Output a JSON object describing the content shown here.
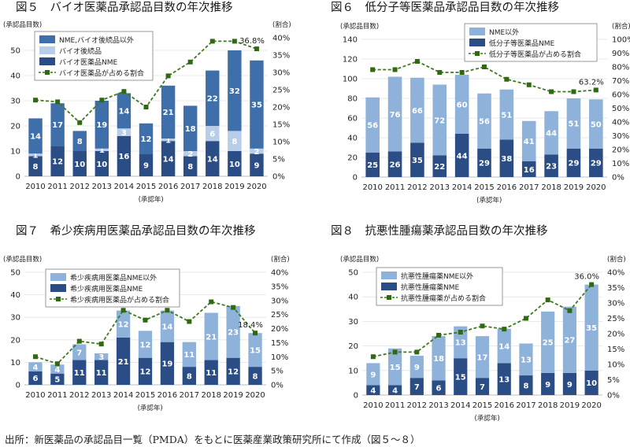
{
  "colors": {
    "light_bar": "#8fb2da",
    "dark_bar": "#2b4d86",
    "mid_bar": "#b7cde8",
    "bio_bar": "#3f6faa",
    "line": "#3f7a1f",
    "marker": "#2f6a12",
    "grid": "#e3e3e3",
    "axis": "#bdbdbd",
    "legend_border": "#7f7f7f"
  },
  "caption": "出所：新医薬品の承認品目一覧（PMDA）をもとに医薬産業政策研究所にて作成（図５～８）",
  "chart_data": [
    {
      "id": "fig5",
      "type": "bar",
      "title": "図５　バイオ医薬品承認品目数の年次推移",
      "ylabel": "(承認品目数)",
      "y2label": "(割合)",
      "xlabel": "(承認年)",
      "categories": [
        "2010",
        "2011",
        "2012",
        "2013",
        "2014",
        "2015",
        "2016",
        "2017",
        "2018",
        "2019",
        "2020"
      ],
      "ylim": [
        0,
        55
      ],
      "yticks": [
        0,
        10,
        20,
        30,
        40,
        50
      ],
      "y2lim": [
        0,
        40
      ],
      "y2ticks": [
        "0%",
        "5%",
        "10%",
        "15%",
        "20%",
        "25%",
        "30%",
        "35%",
        "40%"
      ],
      "legend": [
        "NME,バイオ後続品以外",
        "バイオ後続品",
        "バイオ医薬品NME",
        "バイオ医薬品が占める割合"
      ],
      "series": [
        {
          "name": "バイオ医薬品NME",
          "values": [
            8,
            12,
            10,
            10,
            16,
            9,
            14,
            8,
            14,
            10,
            9
          ],
          "color": "#2b4d86"
        },
        {
          "name": "バイオ後続品",
          "values": [
            1,
            0,
            0,
            1,
            3,
            0,
            1,
            2,
            6,
            8,
            2
          ],
          "color": "#b7cde8"
        },
        {
          "name": "NME,バイオ後続品以外",
          "values": [
            14,
            17,
            8,
            19,
            14,
            12,
            21,
            18,
            22,
            32,
            35
          ],
          "color": "#3f6faa"
        }
      ],
      "hidden_labels": [
        [],
        [
          1
        ],
        [
          2
        ],
        [],
        [],
        [
          1
        ],
        [],
        [],
        [],
        [],
        []
      ],
      "line": {
        "name": "バイオ医薬品が占める割合",
        "values": [
          22,
          21.5,
          15.5,
          22,
          24.5,
          20,
          29,
          33,
          39,
          39,
          36.8
        ]
      },
      "annotation": {
        "text": "36.8%",
        "index": 10
      }
    },
    {
      "id": "fig6",
      "type": "bar",
      "title": "図６　低分子等医薬品承認品目数の年次推移",
      "ylabel": "(承認品目数)",
      "y2label": "(割合)",
      "xlabel": "(承認年)",
      "categories": [
        "2010",
        "2011",
        "2012",
        "2013",
        "2014",
        "2015",
        "2016",
        "2017",
        "2018",
        "2019",
        "2020"
      ],
      "ylim": [
        0,
        140
      ],
      "yticks": [
        0,
        20,
        40,
        60,
        80,
        100,
        120,
        140
      ],
      "y2lim": [
        0,
        100
      ],
      "y2ticks": [
        "0%",
        "10%",
        "20%",
        "30%",
        "40%",
        "50%",
        "60%",
        "70%",
        "80%",
        "90%",
        "100%"
      ],
      "legend": [
        "NME以外",
        "低分子等医薬品NME",
        "低分子等医薬品が占める割合"
      ],
      "series": [
        {
          "name": "低分子等医薬品NME",
          "values": [
            25,
            26,
            35,
            22,
            44,
            29,
            38,
            16,
            23,
            29,
            29
          ],
          "color": "#2b4d86"
        },
        {
          "name": "NME以外",
          "values": [
            56,
            76,
            66,
            72,
            60,
            56,
            51,
            41,
            44,
            51,
            50
          ],
          "color": "#8fb2da"
        }
      ],
      "line": {
        "name": "低分子等医薬品が占める割合",
        "values": [
          78,
          78,
          84,
          76,
          76,
          80,
          71,
          67,
          62,
          62,
          63.2
        ]
      },
      "annotation": {
        "text": "63.2%",
        "index": 10
      }
    },
    {
      "id": "fig7",
      "type": "bar",
      "title": "図７　希少疾病用医薬品承認品目数の年次推移",
      "ylabel": "(承認品目数)",
      "y2label": "(割合)",
      "xlabel": "(承認年)",
      "categories": [
        "2010",
        "2011",
        "2012",
        "2013",
        "2014",
        "2015",
        "2016",
        "2017",
        "2018",
        "2019",
        "2020"
      ],
      "ylim": [
        0,
        50
      ],
      "yticks": [
        0,
        10,
        20,
        30,
        40,
        50
      ],
      "y2lim": [
        0,
        40
      ],
      "y2ticks": [
        "0%",
        "5%",
        "10%",
        "15%",
        "20%",
        "25%",
        "30%",
        "35%",
        "40%"
      ],
      "legend": [
        "希少疾病用医薬品NME以外",
        "希少疾病用医薬品NME",
        "希少疾病用医薬品が占める割合"
      ],
      "series": [
        {
          "name": "希少疾病用医薬品NME",
          "values": [
            6,
            5,
            11,
            11,
            21,
            12,
            19,
            8,
            11,
            12,
            8
          ],
          "color": "#2b4d86"
        },
        {
          "name": "希少疾病用医薬品NME以外",
          "values": [
            4,
            4,
            7,
            3,
            12,
            12,
            14,
            11,
            21,
            23,
            15
          ],
          "color": "#8fb2da"
        }
      ],
      "line": {
        "name": "希少疾病用医薬品が占める割合",
        "values": [
          10,
          7.5,
          15.5,
          14.5,
          26.5,
          23,
          26.5,
          22.5,
          29.5,
          27.5,
          18.4
        ]
      },
      "annotation": {
        "text": "18.4%",
        "index": 10
      }
    },
    {
      "id": "fig8",
      "type": "bar",
      "title": "図８　抗悪性腫瘍薬承認品目数の年次推移",
      "ylabel": "(承認品目数)",
      "y2label": "(割合)",
      "xlabel": "(承認年)",
      "categories": [
        "2010",
        "2011",
        "2012",
        "2013",
        "2014",
        "2015",
        "2016",
        "2017",
        "2018",
        "2019",
        "2020"
      ],
      "ylim": [
        0,
        50
      ],
      "yticks": [
        0,
        10,
        20,
        30,
        40,
        50
      ],
      "y2lim": [
        0,
        40
      ],
      "y2ticks": [
        "0%",
        "5%",
        "10%",
        "15%",
        "20%",
        "25%",
        "30%",
        "35%",
        "40%"
      ],
      "legend": [
        "抗悪性腫瘍薬NME以外",
        "抗悪性腫瘍薬NME",
        "抗悪性腫瘍薬が占める割合"
      ],
      "series": [
        {
          "name": "抗悪性腫瘍薬NME",
          "values": [
            4,
            4,
            7,
            6,
            15,
            7,
            13,
            8,
            9,
            9,
            10
          ],
          "color": "#2b4d86"
        },
        {
          "name": "抗悪性腫瘍薬NME以外",
          "values": [
            9,
            15,
            9,
            18,
            13,
            17,
            14,
            13,
            25,
            27,
            35
          ],
          "color": "#8fb2da"
        }
      ],
      "line": {
        "name": "抗悪性腫瘍薬が占める割合",
        "values": [
          12.5,
          14,
          14,
          19.5,
          20.5,
          22.5,
          21.5,
          25,
          31,
          27.5,
          36
        ]
      },
      "annotation": {
        "text": "36.0%",
        "index": 10
      }
    }
  ]
}
